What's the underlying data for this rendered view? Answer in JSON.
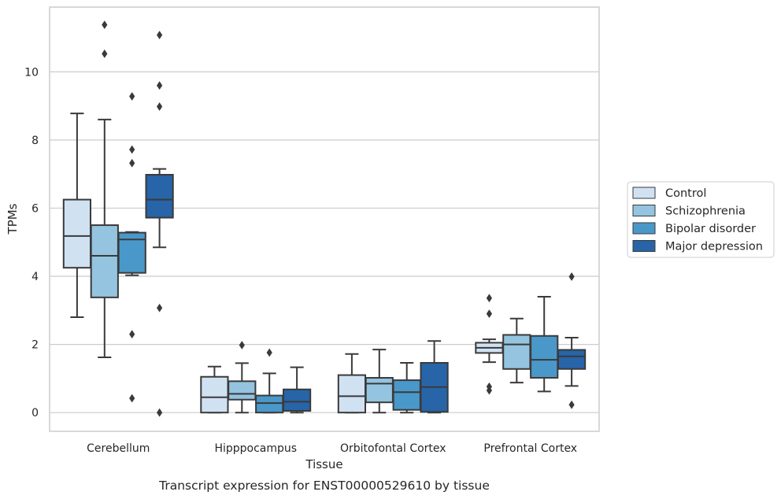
{
  "chart_data": {
    "type": "box",
    "title": "",
    "caption": "Transcript expression for ENST00000529610 by tissue",
    "xlabel": "Tissue",
    "ylabel": "TPMs",
    "ylim": [
      -0.55,
      11.9
    ],
    "yticks": [
      0,
      2,
      4,
      6,
      8,
      10
    ],
    "grid": "horizontal",
    "legend_placement": "right",
    "categories": [
      "Cerebellum",
      "Hipppocampus",
      "Orbitofontal Cortex",
      "Prefrontal Cortex"
    ],
    "series": [
      {
        "name": "Control",
        "color": "#d0e1f2",
        "boxes": [
          {
            "whisker_low": 2.8,
            "q1": 4.25,
            "median": 5.18,
            "q3": 6.25,
            "whisker_high": 8.78,
            "outliers": []
          },
          {
            "whisker_low": 0.0,
            "q1": 0.0,
            "median": 0.45,
            "q3": 1.05,
            "whisker_high": 1.35,
            "outliers": []
          },
          {
            "whisker_low": 0.0,
            "q1": 0.0,
            "median": 0.48,
            "q3": 1.1,
            "whisker_high": 1.72,
            "outliers": []
          },
          {
            "whisker_low": 1.48,
            "q1": 1.75,
            "median": 1.9,
            "q3": 2.05,
            "whisker_high": 2.15,
            "outliers": [
              3.36,
              2.9,
              0.76,
              0.65
            ]
          }
        ]
      },
      {
        "name": "Schizophrenia",
        "color": "#94c4df",
        "boxes": [
          {
            "whisker_low": 1.62,
            "q1": 3.38,
            "median": 4.6,
            "q3": 5.5,
            "whisker_high": 8.6,
            "outliers": [
              11.38,
              10.53
            ]
          },
          {
            "whisker_low": 0.0,
            "q1": 0.38,
            "median": 0.55,
            "q3": 0.92,
            "whisker_high": 1.45,
            "outliers": [
              1.98
            ]
          },
          {
            "whisker_low": 0.0,
            "q1": 0.3,
            "median": 0.85,
            "q3": 1.02,
            "whisker_high": 1.85,
            "outliers": []
          },
          {
            "whisker_low": 0.88,
            "q1": 1.28,
            "median": 2.0,
            "q3": 2.28,
            "whisker_high": 2.76,
            "outliers": []
          }
        ]
      },
      {
        "name": "Bipolar disorder",
        "color": "#4a98c9",
        "boxes": [
          {
            "whisker_low": 4.03,
            "q1": 4.1,
            "median": 5.08,
            "q3": 5.28,
            "whisker_high": 5.3,
            "outliers": [
              9.28,
              7.72,
              7.32,
              2.3,
              0.42
            ]
          },
          {
            "whisker_low": 0.0,
            "q1": 0.0,
            "median": 0.28,
            "q3": 0.5,
            "whisker_high": 1.15,
            "outliers": [
              1.76
            ]
          },
          {
            "whisker_low": 0.0,
            "q1": 0.08,
            "median": 0.6,
            "q3": 0.95,
            "whisker_high": 1.46,
            "outliers": []
          },
          {
            "whisker_low": 0.62,
            "q1": 1.02,
            "median": 1.55,
            "q3": 2.25,
            "whisker_high": 3.4,
            "outliers": []
          }
        ]
      },
      {
        "name": "Major depression",
        "color": "#2764a8",
        "boxes": [
          {
            "whisker_low": 4.85,
            "q1": 5.72,
            "median": 6.25,
            "q3": 6.98,
            "whisker_high": 7.15,
            "outliers": [
              11.08,
              9.6,
              8.98,
              3.07,
              0.0
            ]
          },
          {
            "whisker_low": 0.0,
            "q1": 0.05,
            "median": 0.32,
            "q3": 0.68,
            "whisker_high": 1.33,
            "outliers": []
          },
          {
            "whisker_low": 0.0,
            "q1": 0.02,
            "median": 0.75,
            "q3": 1.46,
            "whisker_high": 2.1,
            "outliers": []
          },
          {
            "whisker_low": 0.78,
            "q1": 1.28,
            "median": 1.65,
            "q3": 1.84,
            "whisker_high": 2.2,
            "outliers": [
              3.99,
              0.23
            ]
          }
        ]
      }
    ]
  }
}
